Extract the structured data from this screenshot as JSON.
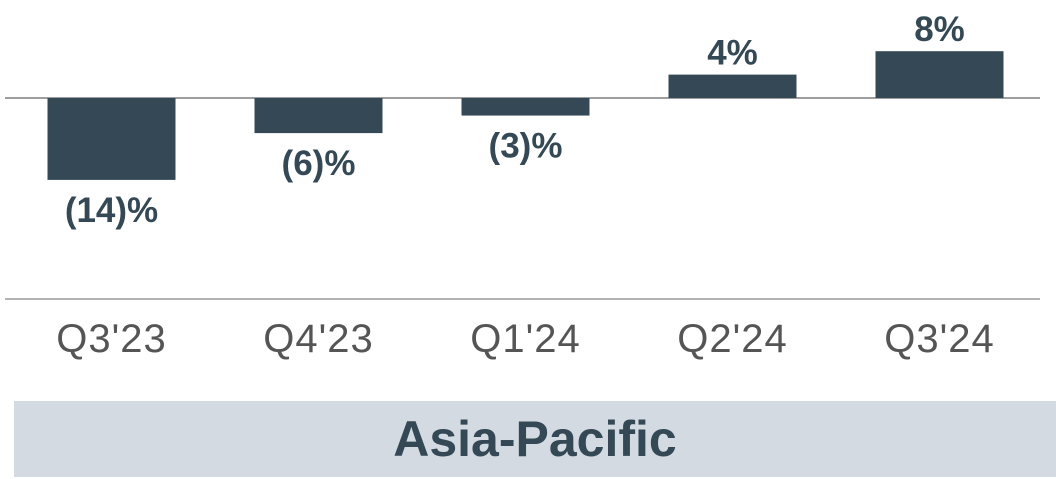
{
  "colors": {
    "bar": "#344955",
    "label": "#344955",
    "tick": "#555555",
    "banner_bg": "#d3dae1"
  },
  "chart_data": {
    "type": "bar",
    "title": "Asia-Pacific",
    "categories": [
      "Q3'23",
      "Q4'23",
      "Q1'24",
      "Q2'24",
      "Q3'24"
    ],
    "values": [
      -14,
      -6,
      -3,
      4,
      8
    ],
    "data_labels": [
      "(14)%",
      "(6)%",
      "(3)%",
      "4%",
      "8%"
    ],
    "unit": "%",
    "ylim": [
      -14,
      8
    ],
    "grid": false,
    "legend": "none"
  }
}
